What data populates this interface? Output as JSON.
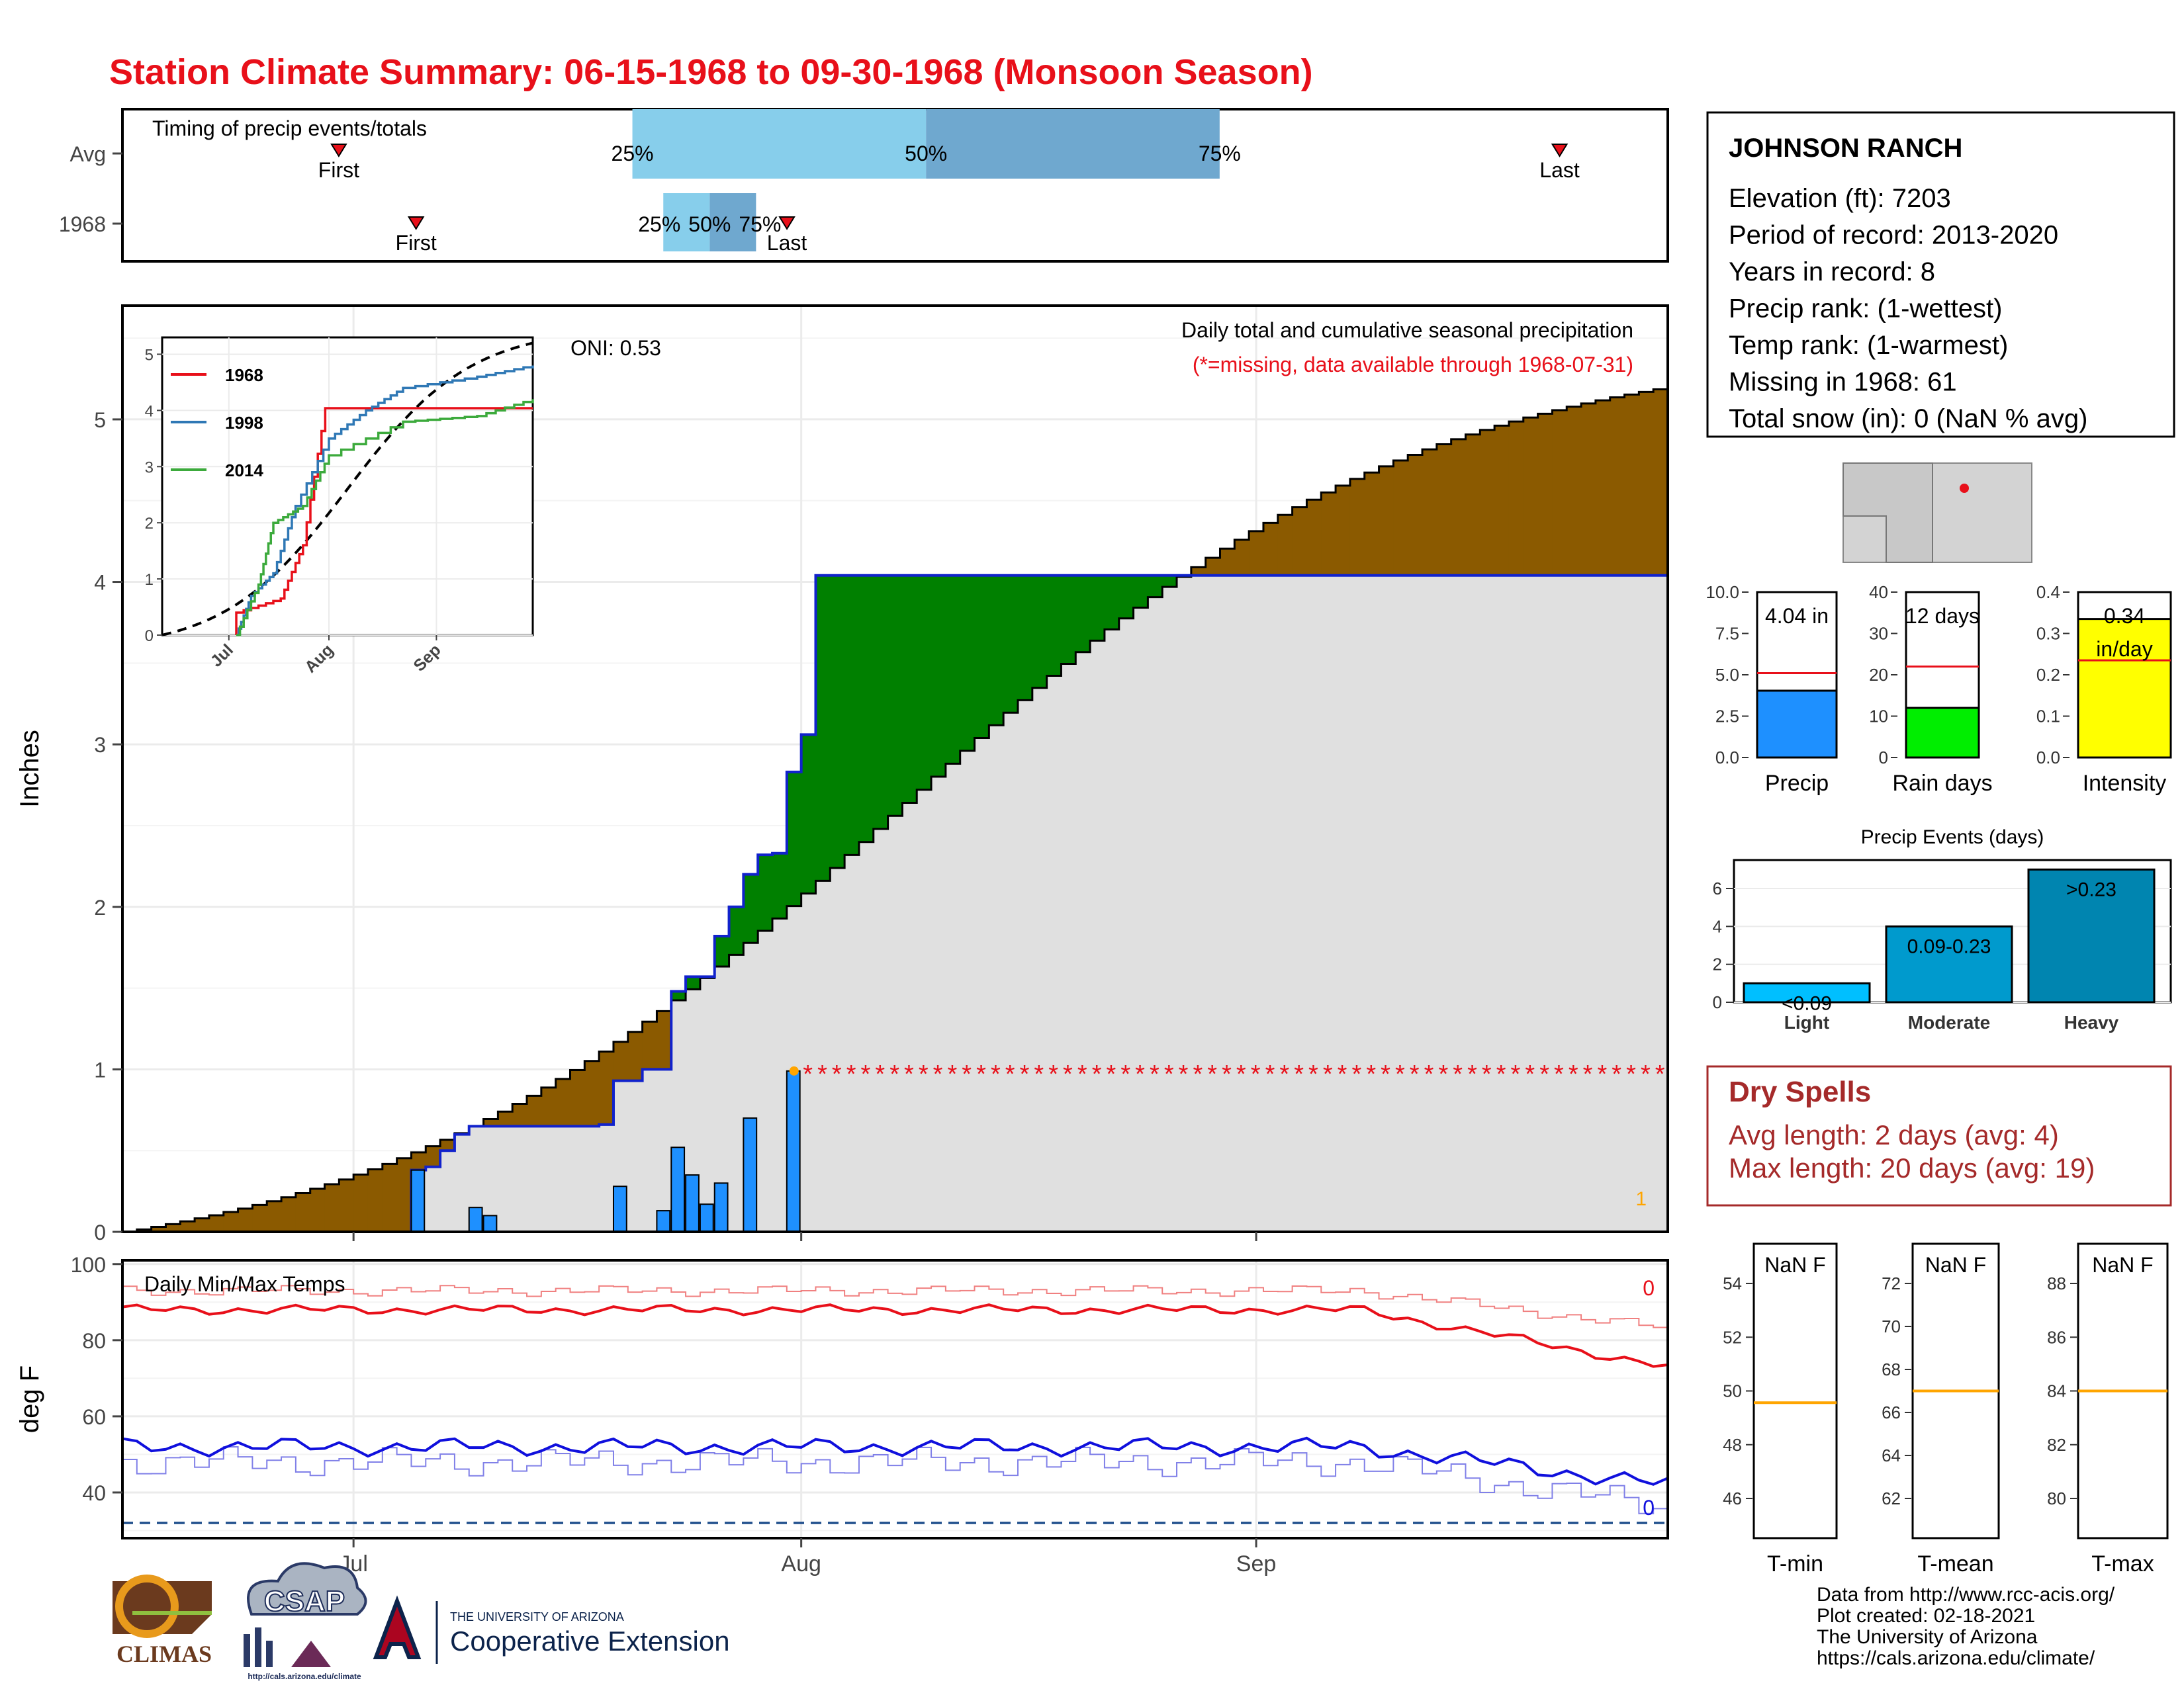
{
  "title": "Station Climate Summary: 06-15-1968 to 09-30-1968 (Monsoon Season)",
  "timing": {
    "label": "Timing of precip events/totals",
    "rows": [
      "Avg",
      "1968"
    ],
    "avg": {
      "first": 0.14,
      "q25": 0.33,
      "q50": 0.52,
      "q75": 0.71,
      "last": 0.93
    },
    "y1968": {
      "first": 0.19,
      "q25": 0.35,
      "q50": 0.38,
      "q75": 0.41,
      "last": 0.43
    },
    "first_label": "First",
    "last_label": "Last",
    "q_labels": [
      "25%",
      "50%",
      "75%"
    ],
    "colors": {
      "light": "#87CEEB",
      "mid": "#6FA8CF",
      "marker": "#E8101A"
    }
  },
  "precip_panel": {
    "ylabel": "Inches",
    "oni": "ONI: 0.53",
    "desc": "Daily total and cumulative seasonal precipitation",
    "missing_note": "(*=missing, data available through 1968-07-31)",
    "yticks": [
      "0",
      "1",
      "2",
      "3",
      "4",
      "5"
    ],
    "ylim": [
      0,
      5.7
    ],
    "xticks": [
      "Jul",
      "Aug",
      "Sep"
    ],
    "count_label": "1",
    "avg_cumulative_end": 5.2,
    "cum_1968_steps": [
      [
        0,
        0
      ],
      [
        20,
        0.38
      ],
      [
        21,
        0.4
      ],
      [
        22,
        0.5
      ],
      [
        23,
        0.6
      ],
      [
        24,
        0.65
      ],
      [
        30,
        0.65
      ],
      [
        33,
        0.66
      ],
      [
        34,
        0.93
      ],
      [
        36,
        1.0
      ],
      [
        38,
        1.48
      ],
      [
        39,
        1.57
      ],
      [
        40,
        1.57
      ],
      [
        41,
        1.82
      ],
      [
        42,
        2.0
      ],
      [
        43,
        2.2
      ],
      [
        44,
        2.32
      ],
      [
        45,
        2.33
      ],
      [
        46,
        2.83
      ],
      [
        47,
        3.06
      ],
      [
        48,
        4.04
      ],
      [
        107,
        4.04
      ]
    ],
    "daily_bars": [
      [
        20,
        0.38
      ],
      [
        24,
        0.15
      ],
      [
        25,
        0.1
      ],
      [
        34,
        0.28
      ],
      [
        37,
        0.13
      ],
      [
        38,
        0.52
      ],
      [
        39,
        0.35
      ],
      [
        40,
        0.17
      ],
      [
        41,
        0.3
      ],
      [
        43,
        0.7
      ],
      [
        46,
        0.99
      ]
    ],
    "missing_marker_value": 0.99,
    "colors": {
      "above": "#008000",
      "below": "#8B5A00",
      "fill": "#E0E0E0",
      "line": "#1122CC",
      "bar": "#1E90FF",
      "missing": "#E8101A"
    }
  },
  "inset": {
    "yticks": [
      "0",
      "1",
      "2",
      "3",
      "4",
      "5"
    ],
    "xticks": [
      "Jul",
      "Aug",
      "Sep"
    ],
    "series": [
      {
        "name": "1968",
        "color": "#E8101A",
        "points": [
          [
            0.2,
            0
          ],
          [
            0.2,
            0.4
          ],
          [
            0.32,
            0.65
          ],
          [
            0.38,
            1.6
          ],
          [
            0.44,
            4.04
          ],
          [
            1,
            4.04
          ]
        ]
      },
      {
        "name": "1998",
        "color": "#2F78B5",
        "points": [
          [
            0.2,
            0
          ],
          [
            0.24,
            0.7
          ],
          [
            0.3,
            1.1
          ],
          [
            0.36,
            2.3
          ],
          [
            0.45,
            3.5
          ],
          [
            0.55,
            4.0
          ],
          [
            0.65,
            4.4
          ],
          [
            0.85,
            4.6
          ],
          [
            1,
            4.8
          ]
        ]
      },
      {
        "name": "2014",
        "color": "#3CAA3C",
        "points": [
          [
            0.2,
            0
          ],
          [
            0.26,
            0.9
          ],
          [
            0.3,
            2.0
          ],
          [
            0.38,
            2.3
          ],
          [
            0.45,
            3.2
          ],
          [
            0.65,
            3.8
          ],
          [
            0.85,
            3.9
          ],
          [
            1,
            4.2
          ]
        ]
      }
    ]
  },
  "temp_panel": {
    "ylabel": "deg F",
    "label": "Daily Min/Max Temps",
    "yticks": [
      "40",
      "60",
      "80",
      "100"
    ],
    "ylim": [
      28,
      101
    ],
    "xticks": [
      "Jul",
      "Aug",
      "Sep"
    ],
    "max_count": "0",
    "min_count": "0",
    "freeze": 32,
    "colors": {
      "max": "#E8101A",
      "max_avg": "#F08080",
      "min": "#1010DD",
      "min_avg": "#8080E8",
      "freeze": "#1F4E8C"
    }
  },
  "station": {
    "name": "JOHNSON RANCH",
    "lines": [
      "Elevation (ft): 7203",
      "Period of record: 2013-2020",
      "Years in record: 8",
      "Precip rank:  (1-wettest)",
      "Temp rank:  (1-warmest)",
      "Missing in 1968: 61",
      "Total snow (in): 0 (NaN % avg)"
    ]
  },
  "mini_bars": [
    {
      "label": "Precip",
      "value_text": "4.04 in",
      "value": 4.04,
      "avg": 5.1,
      "yticks": [
        "0.0",
        "2.5",
        "5.0",
        "7.5",
        "10.0"
      ],
      "ymax": 10,
      "color": "#1E90FF"
    },
    {
      "label": "Rain days",
      "value_text": "12 days",
      "value": 12,
      "avg": 22,
      "yticks": [
        "0",
        "10",
        "20",
        "30",
        "40"
      ],
      "ymax": 40,
      "color": "#00EE00"
    },
    {
      "label": "Intensity",
      "value_text": "0.34",
      "unit_text": "in/day",
      "value": 0.335,
      "avg": 0.235,
      "yticks": [
        "0.0",
        "0.1",
        "0.2",
        "0.3",
        "0.4"
      ],
      "ymax": 0.4,
      "color": "#FFFF00"
    }
  ],
  "events": {
    "title": "Precip Events (days)",
    "yticks": [
      "0",
      "2",
      "4",
      "6"
    ],
    "bars": [
      {
        "label": "Light",
        "range": "<0.09",
        "value": 1,
        "color": "#00BFFF"
      },
      {
        "label": "Moderate",
        "range": "0.09-0.23",
        "value": 4,
        "color": "#009ACD"
      },
      {
        "label": "Heavy",
        "range": ">0.23",
        "value": 7,
        "color": "#0085B0"
      }
    ]
  },
  "dry_spells": {
    "title": "Dry Spells",
    "lines": [
      "Avg length: 2 days (avg: 4)",
      "Max length: 20 days (avg: 19)"
    ]
  },
  "temp_boxes": [
    {
      "label": "T-min",
      "value_text": "NaN F",
      "yticks": [
        "46",
        "48",
        "50",
        "52",
        "54"
      ],
      "avg_frac": 0.46
    },
    {
      "label": "T-mean",
      "value_text": "NaN F",
      "yticks": [
        "62",
        "64",
        "66",
        "68",
        "70",
        "72"
      ],
      "avg_frac": 0.5
    },
    {
      "label": "T-max",
      "value_text": "NaN F",
      "yticks": [
        "80",
        "82",
        "84",
        "86",
        "88"
      ],
      "avg_frac": 0.5
    }
  ],
  "footer": {
    "lines": [
      "Data from http://www.rcc-acis.org/",
      "Plot created: 02-18-2021",
      "The University of Arizona",
      "https://cals.arizona.edu/climate/"
    ],
    "logos": {
      "climas": "CLIMAS",
      "csap": "CSAP",
      "csap_url": "http://cals.arizona.edu/climate",
      "ua_small": "THE UNIVERSITY OF ARIZONA",
      "ua_big": "Cooperative Extension"
    }
  }
}
